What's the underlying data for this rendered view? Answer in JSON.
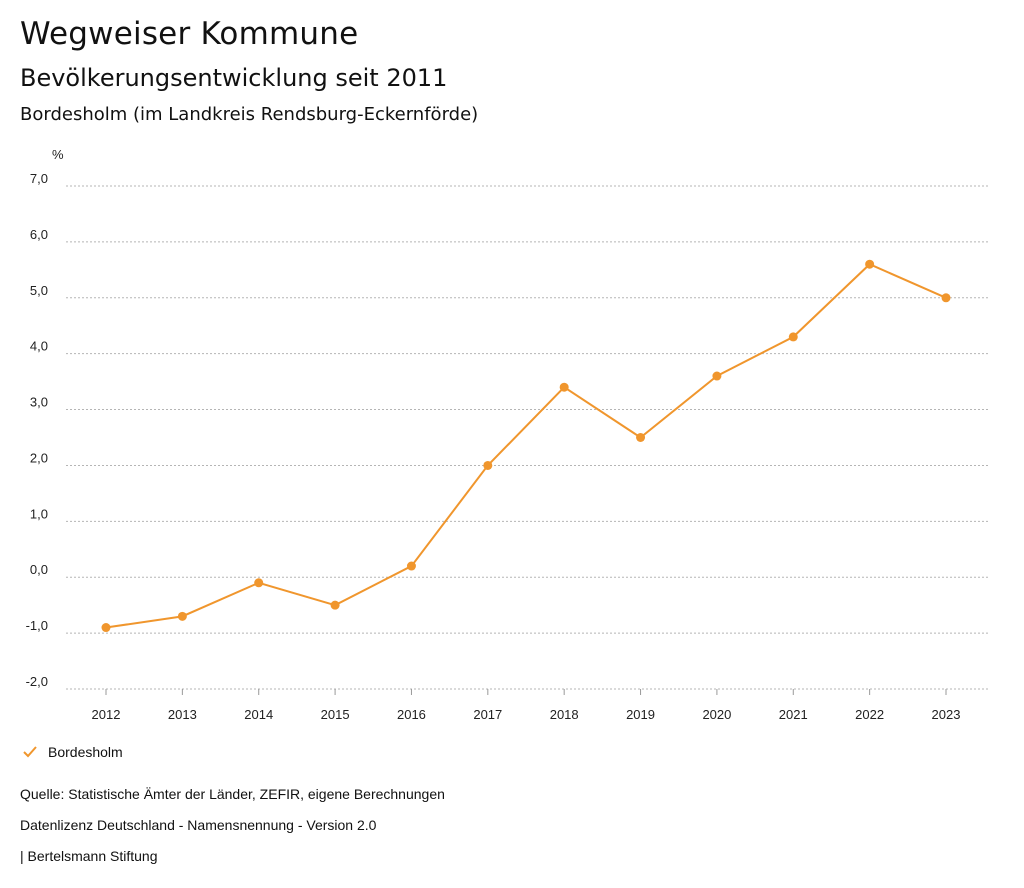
{
  "header": {
    "app_title": "Wegweiser Kommune",
    "subtitle": "Bevölkerungsentwicklung seit 2011",
    "region": "Bordesholm (im Landkreis Rendsburg-Eckernförde)"
  },
  "chart_data": {
    "type": "line",
    "title": "Bevölkerungsentwicklung seit 2011",
    "subtitle": "Bordesholm (im Landkreis Rendsburg-Eckernförde)",
    "unit_label": "%",
    "x": [
      "2012",
      "2013",
      "2014",
      "2015",
      "2016",
      "2017",
      "2018",
      "2019",
      "2020",
      "2021",
      "2022",
      "2023"
    ],
    "y_ticks": [
      "-2,0",
      "-1,0",
      "0,0",
      "1,0",
      "2,0",
      "3,0",
      "4,0",
      "5,0",
      "6,0",
      "7,0"
    ],
    "ylim": [
      -2,
      7
    ],
    "grid": true,
    "legend_position": "bottom-left",
    "series": [
      {
        "name": "Bordesholm",
        "color": "#f0962d",
        "values": [
          -0.9,
          -0.7,
          -0.1,
          -0.5,
          0.2,
          2.0,
          3.4,
          2.5,
          3.6,
          4.3,
          5.6,
          5.0
        ]
      }
    ]
  },
  "legend": {
    "label": "Bordesholm",
    "icon": "check-icon",
    "color": "#f0962d"
  },
  "footer": {
    "source": "Quelle: Statistische Ämter der Länder, ZEFIR, eigene Berechnungen",
    "license": "Datenlizenz Deutschland - Namensnennung - Version 2.0",
    "credit": "| Bertelsmann Stiftung"
  }
}
